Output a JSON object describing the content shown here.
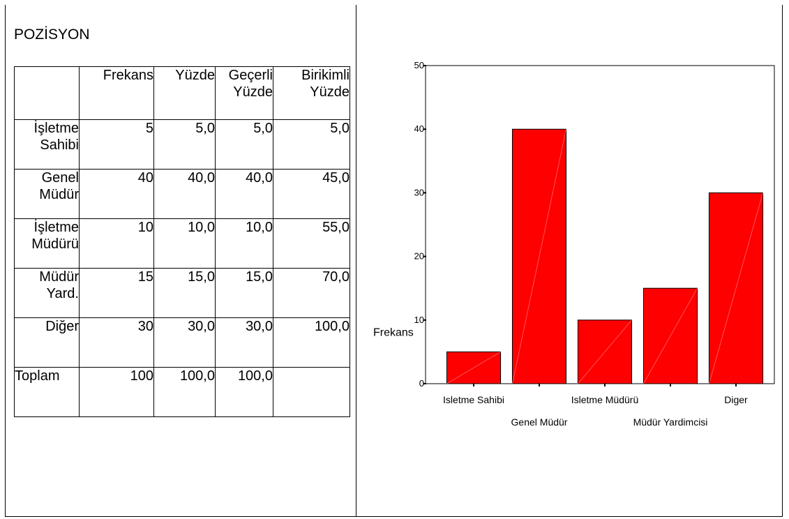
{
  "table": {
    "title": "POZİSYON",
    "headers": [
      "",
      "Frekans",
      "Yüzde",
      "Geçerli Yüzde",
      "Birikimli Yüzde"
    ],
    "rows": [
      {
        "label": "İşletme Sahibi",
        "frekans": "5",
        "yuzde": "5,0",
        "gecerli": "5,0",
        "birikimli": "5,0"
      },
      {
        "label": "Genel Müdür",
        "frekans": "40",
        "yuzde": "40,0",
        "gecerli": "40,0",
        "birikimli": "45,0"
      },
      {
        "label": "İşletme Müdürü",
        "frekans": "10",
        "yuzde": "10,0",
        "gecerli": "10,0",
        "birikimli": "55,0"
      },
      {
        "label": "Müdür Yard.",
        "frekans": "15",
        "yuzde": "15,0",
        "gecerli": "15,0",
        "birikimli": "70,0"
      },
      {
        "label": "Diğer",
        "frekans": "30",
        "yuzde": "30,0",
        "gecerli": "30,0",
        "birikimli": "100,0"
      },
      {
        "label": "Toplam",
        "frekans": "100",
        "yuzde": "100,0",
        "gecerli": "100,0",
        "birikimli": ""
      }
    ]
  },
  "chart_data": {
    "type": "bar",
    "categories": [
      "Isletme Sahibi",
      "Genel Müdür",
      "Isletme Müdürü",
      "Müdür Yardimcisi",
      "Diger"
    ],
    "values": [
      5,
      40,
      10,
      15,
      30
    ],
    "title": "",
    "xlabel": "",
    "ylabel": "Frekans",
    "ylim": [
      0,
      50
    ],
    "yticks": [
      0,
      10,
      20,
      30,
      40,
      50
    ],
    "bar_color": "#ff0000",
    "grid": false
  }
}
